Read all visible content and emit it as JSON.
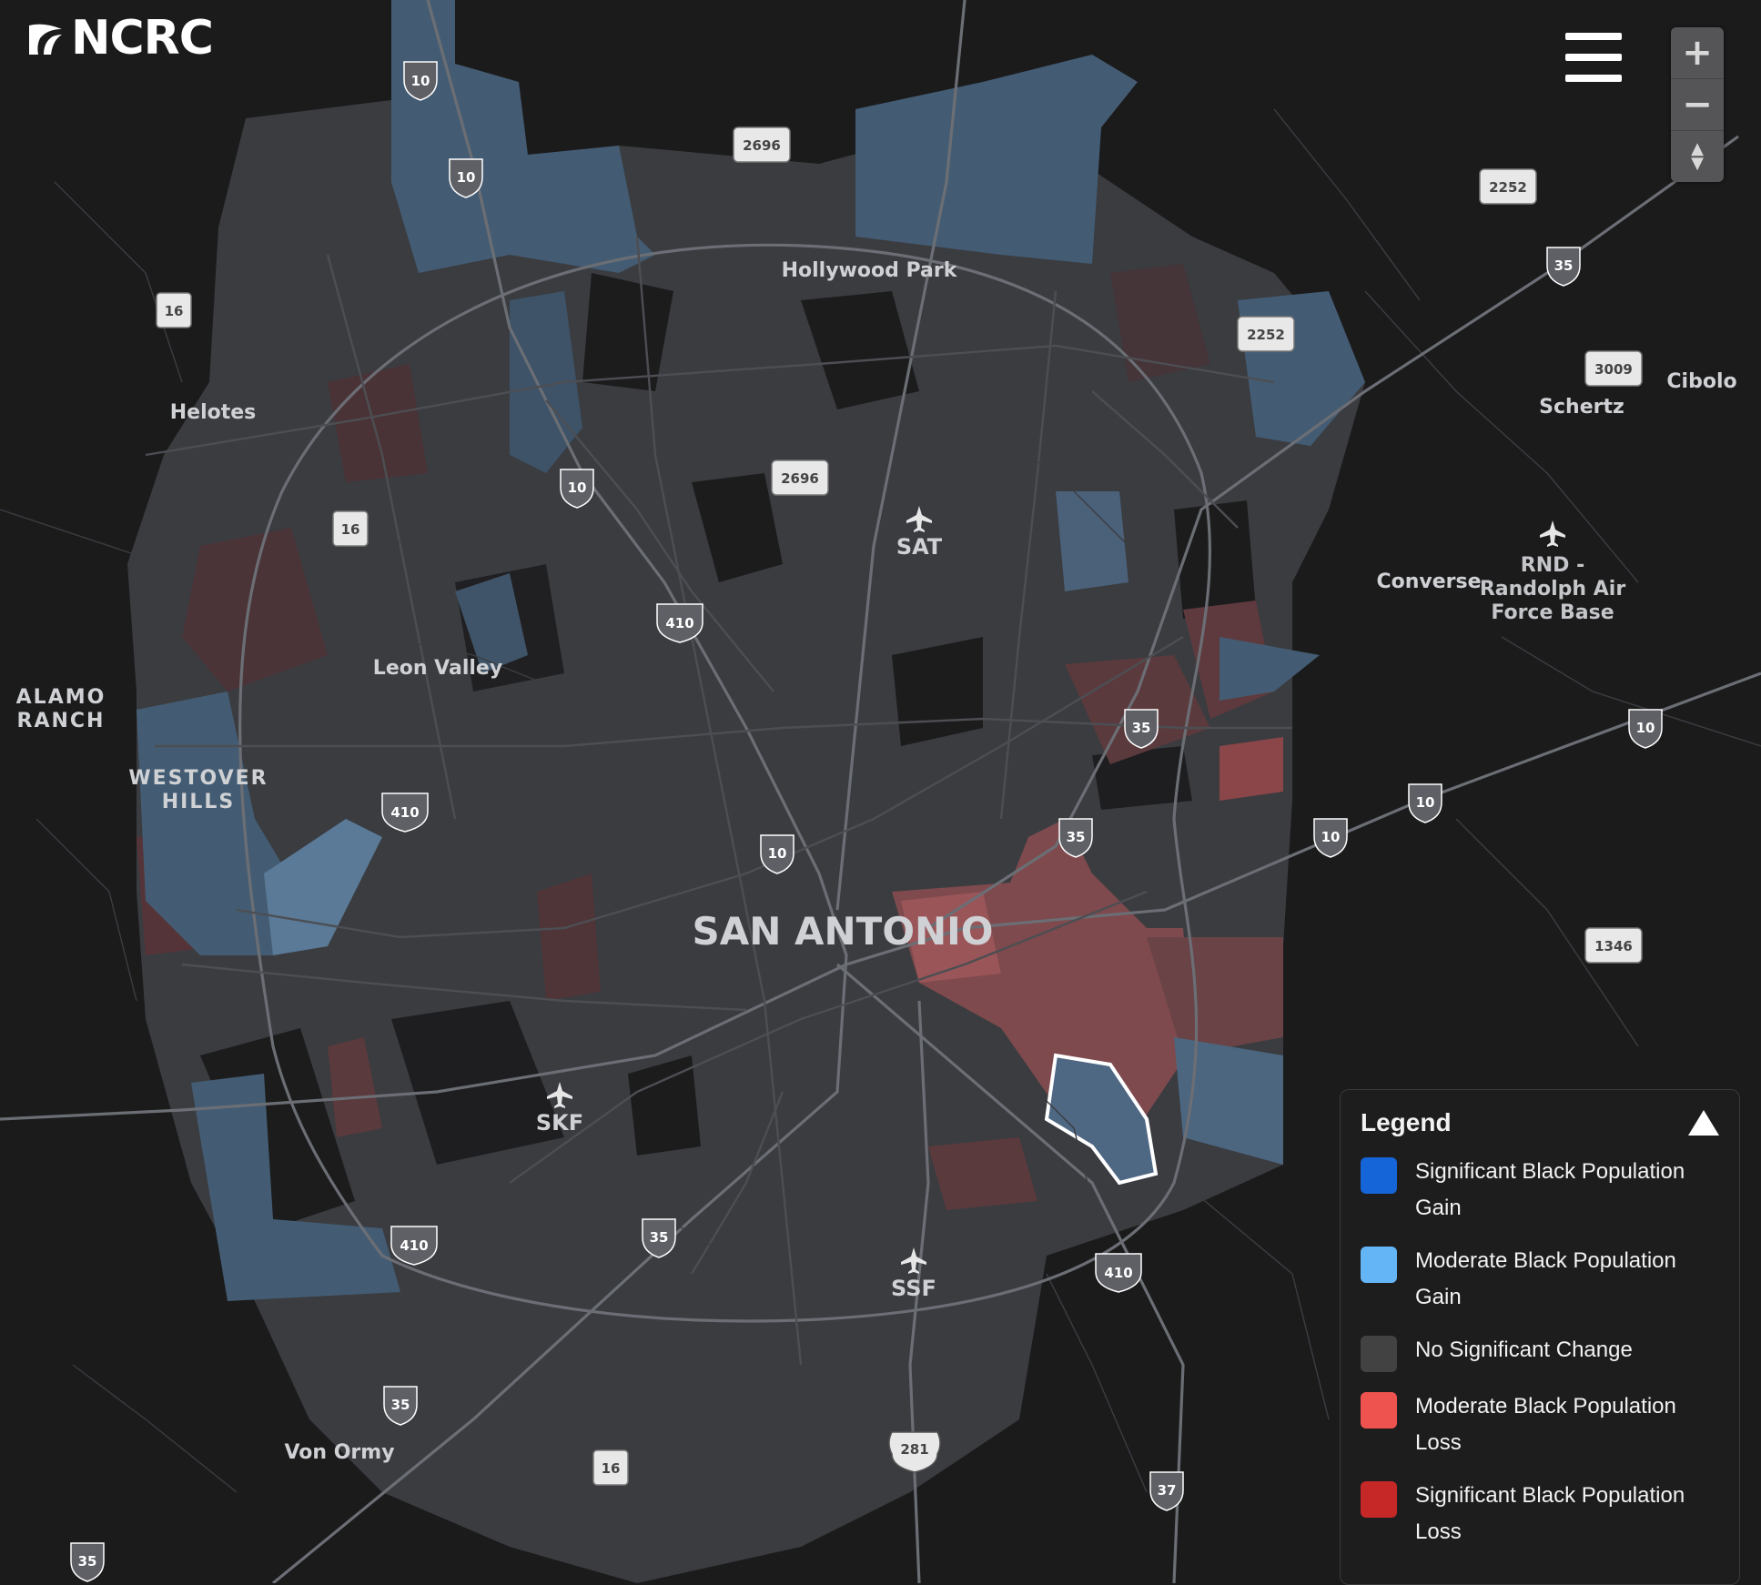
{
  "brand": {
    "name": "NCRC"
  },
  "controls": {
    "zoom_in": "+",
    "zoom_out": "−",
    "reset_north": "▲▼"
  },
  "colors": {
    "significant_gain": "#1565d8",
    "moderate_gain": "#64b5f6",
    "no_change": "#424242",
    "moderate_loss": "#ef5350",
    "significant_loss": "#c62828"
  },
  "map": {
    "city_label": "SAN ANTONIO",
    "places": {
      "hollywood_park": "Hollywood Park",
      "helotes": "Helotes",
      "leon_valley": "Leon Valley",
      "alamo_ranch_1": "ALAMO",
      "alamo_ranch_2": "RANCH",
      "westover_1": "WESTOVER",
      "westover_2": "HILLS",
      "converse": "Converse",
      "schertz": "Schertz",
      "cibolo": "Cibolo",
      "randolph_1": "RND -",
      "randolph_2": "Randolph Air",
      "randolph_3": "Force Base",
      "von_ormy": "Von Ormy",
      "sat": "SAT",
      "skf": "SKF",
      "ssf": "SSF"
    },
    "shields": {
      "i10": "10",
      "i35": "35",
      "i37": "37",
      "i410": "410",
      "us281": "281",
      "tx16": "16",
      "fm2696": "2696",
      "fm2252": "2252",
      "fm3009": "3009",
      "fm1346": "1346"
    }
  },
  "legend": {
    "title": "Legend",
    "items": [
      {
        "line1": "Significant Black Population",
        "line2": "Gain"
      },
      {
        "line1": "Moderate Black Population",
        "line2": "Gain"
      },
      {
        "line1": "No Significant Change",
        "line2": ""
      },
      {
        "line1": "Moderate Black Population",
        "line2": "Loss"
      },
      {
        "line1": "Significant Black Population",
        "line2": "Loss"
      }
    ]
  }
}
